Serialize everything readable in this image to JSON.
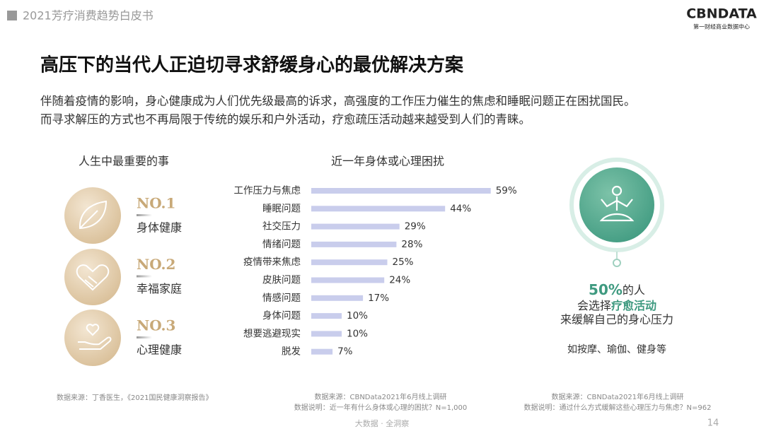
{
  "header": {
    "report": "2021芳疗消费趋势白皮书",
    "logo": "CBNDATA",
    "logo_sub": "第一财经商业数据中心"
  },
  "title": "高压下的当代人正迫切寻求舒缓身心的最优解决方案",
  "intro": [
    "伴随着疫情的影响，身心健康成为人们优先级最高的诉求，高强度的工作压力催生的焦虑和睡眠问题正在困扰国民。",
    "而寻求解压的方式也不再局限于传统的娱乐和户外活动，疗愈疏压活动越来越受到人们的青睐。"
  ],
  "ranking": {
    "heading": "人生中最重要的事",
    "items": [
      {
        "rank": "NO.1",
        "label": "身体健康"
      },
      {
        "rank": "NO.2",
        "label": "幸福家庭"
      },
      {
        "rank": "NO.3",
        "label": "心理健康"
      }
    ],
    "source": "数据来源：丁香医生，《2021国民健康洞察报告》"
  },
  "chart_data": {
    "type": "bar",
    "orientation": "horizontal",
    "title": "近一年身体或心理困扰",
    "color": "#c9cdec",
    "categories": [
      "工作压力与焦虑",
      "睡眠问题",
      "社交压力",
      "情绪问题",
      "疫情带来焦虑",
      "皮肤问题",
      "情感问题",
      "身体问题",
      "想要逃避现实",
      "脱发"
    ],
    "values": [
      59,
      44,
      29,
      28,
      25,
      24,
      17,
      10,
      10,
      7
    ],
    "value_labels": [
      "59%",
      "44%",
      "29%",
      "28%",
      "25%",
      "24%",
      "17%",
      "10%",
      "10%",
      "7%"
    ],
    "source": [
      "数据来源：CBNData2021年6月线上调研",
      "数据说明：近一年有什么身体或心理的困扰？N=1,000"
    ]
  },
  "callout": {
    "value": "50%",
    "suffix": "的人",
    "line2_prefix": "会选择",
    "line2_highlight": "疗愈活动",
    "line3": "来缓解自己的身心压力",
    "examples": "如按摩、瑜伽、健身等",
    "source": [
      "数据来源：CBNData2021年6月线上调研",
      "数据说明：通过什么方式缓解这些心理压力与焦虑？N=962"
    ]
  },
  "footer": {
    "slogan": "大数据 · 全洞察",
    "page": "14"
  }
}
